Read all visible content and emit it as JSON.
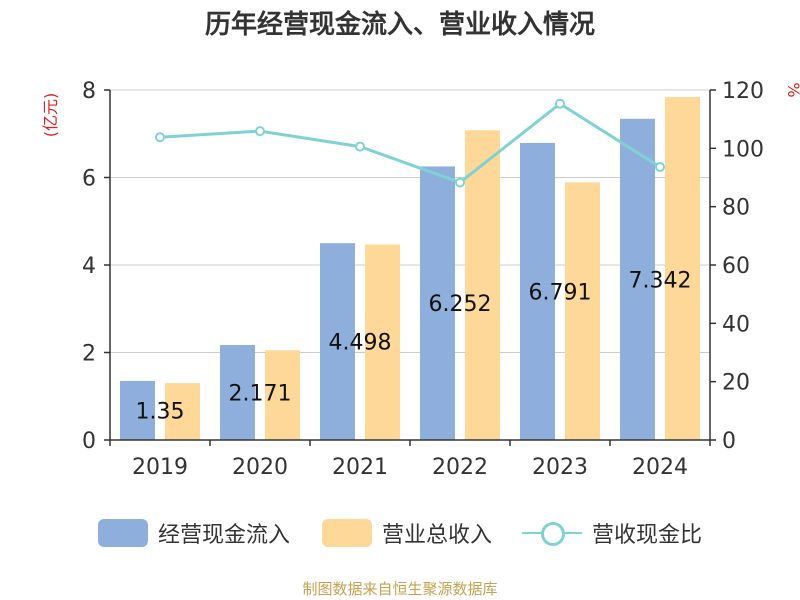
{
  "chart_data": {
    "type": "bar",
    "title": "历年经营现金流入、营业收入情况",
    "categories": [
      "2019",
      "2020",
      "2021",
      "2022",
      "2023",
      "2024"
    ],
    "y_left": {
      "label": "(亿元)",
      "ylim": [
        0,
        8
      ],
      "ticks": [
        0,
        2,
        4,
        6,
        8
      ]
    },
    "y_right": {
      "label": "%",
      "ylim": [
        0,
        120
      ],
      "ticks": [
        0,
        20,
        40,
        60,
        80,
        100,
        120
      ]
    },
    "grid": true,
    "legend_position": "bottom",
    "series": [
      {
        "name": "经营现金流入",
        "type": "bar",
        "axis": "left",
        "color": "#8eaedc",
        "values": [
          1.35,
          2.171,
          4.498,
          6.252,
          6.791,
          7.342
        ],
        "data_labels": [
          "1.35",
          "2.171",
          "4.498",
          "6.252",
          "6.791",
          "7.342"
        ]
      },
      {
        "name": "营业总收入",
        "type": "bar",
        "axis": "left",
        "color": "#fdd898",
        "values": [
          1.3,
          2.05,
          4.47,
          7.08,
          5.89,
          7.84
        ]
      },
      {
        "name": "营收现金比",
        "type": "line",
        "axis": "right",
        "color": "#80d2d2",
        "values": [
          103.8,
          105.9,
          100.6,
          88.3,
          115.3,
          93.6
        ]
      }
    ],
    "source": "制图数据来自恒生聚源数据库"
  }
}
